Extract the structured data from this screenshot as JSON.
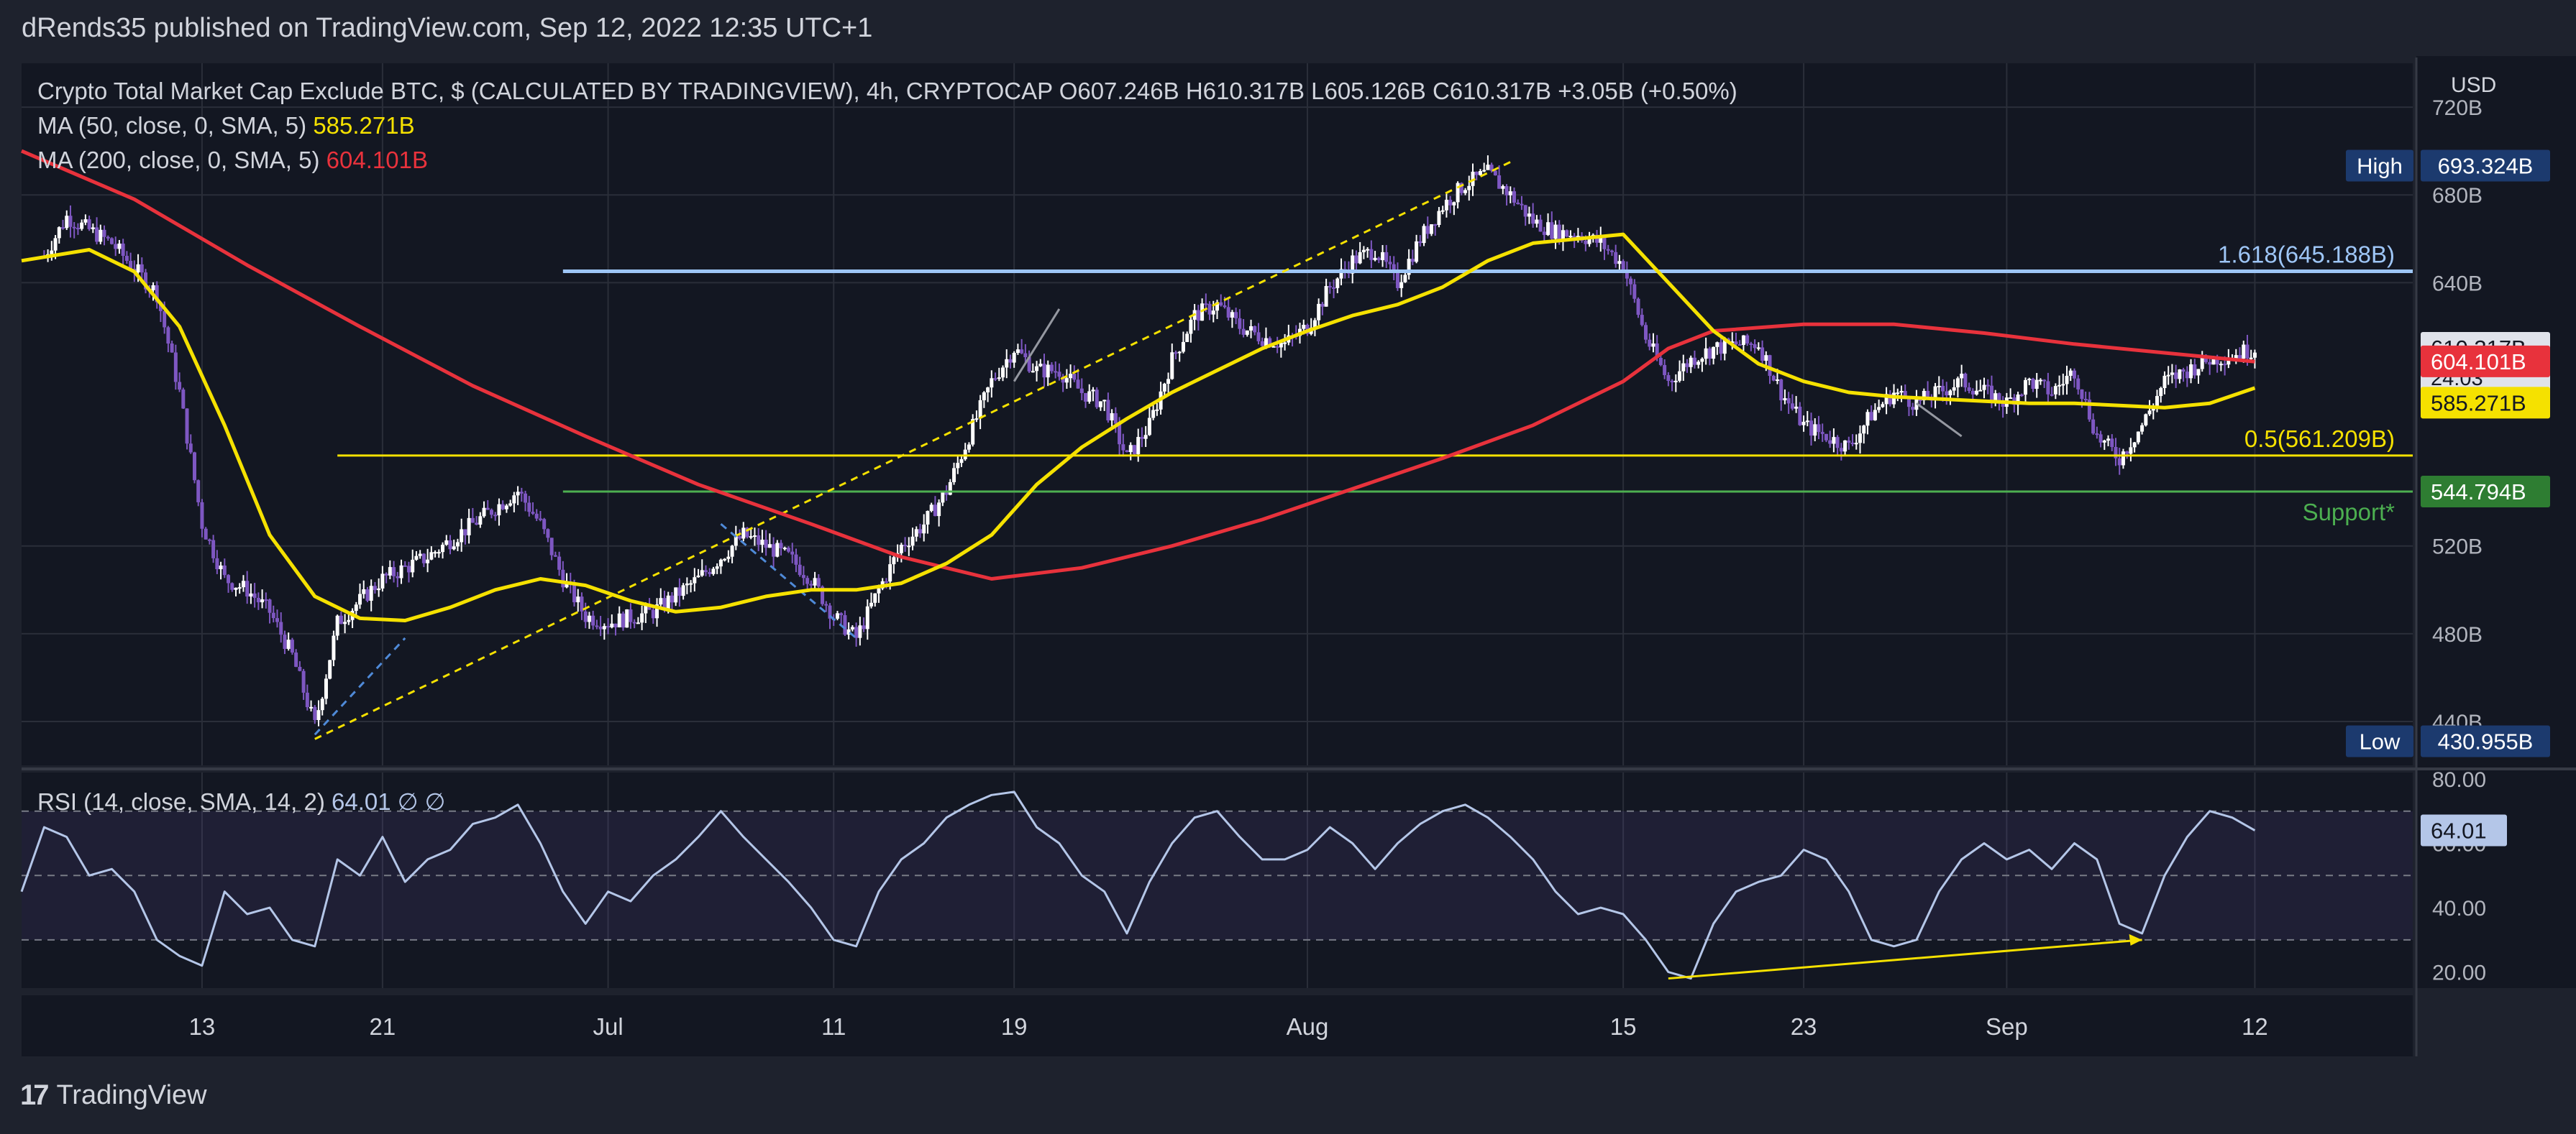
{
  "header": {
    "published": "dRends35 published on TradingView.com, Sep 12, 2022 12:35 UTC+1"
  },
  "footer": {
    "brand": "TradingView"
  },
  "colors": {
    "background": "#131722",
    "frame": "#1e222d",
    "grid": "#2a2e39",
    "text": "#d1d4dc",
    "ma50": "#f5e100",
    "ma200": "#e8323c",
    "fib": "#9ec6f7",
    "support": "#4caf50",
    "candle_up": "#ffffff",
    "candle_down": "#7e57c2",
    "rsi": "#b4c6e8"
  },
  "chart_data": [
    {
      "type": "candlestick",
      "title": "Crypto Total Market Cap Exclude BTC, $ (CALCULATED BY TRADINGVIEW), 4h, CRYPTOCAP",
      "ohlc_text": "O607.246B  H610.317B  L605.126B  C610.317B  +3.05B (+0.50%)",
      "currency": "USD",
      "ylim": [
        420,
        740
      ],
      "yticks": [
        {
          "value": 720,
          "label": "720B"
        },
        {
          "value": 680,
          "label": "680B"
        },
        {
          "value": 640,
          "label": "640B"
        },
        {
          "value": 520,
          "label": "520B"
        },
        {
          "value": 480,
          "label": "480B"
        },
        {
          "value": 440,
          "label": "440B"
        }
      ],
      "xticks": [
        {
          "day": 13,
          "label": "13"
        },
        {
          "day": 21,
          "label": "21"
        },
        {
          "day": 31,
          "label": "Jul"
        },
        {
          "day": 41,
          "label": "11"
        },
        {
          "day": 49,
          "label": "19"
        },
        {
          "day": 62,
          "label": "Aug"
        },
        {
          "day": 76,
          "label": "15"
        },
        {
          "day": 84,
          "label": "23"
        },
        {
          "day": 93,
          "label": "Sep"
        },
        {
          "day": 104,
          "label": "12"
        }
      ],
      "xlim": [
        5,
        111
      ],
      "price_path": [
        [
          6,
          652
        ],
        [
          7,
          670
        ],
        [
          9,
          658
        ],
        [
          11,
          635
        ],
        [
          12,
          590
        ],
        [
          13,
          530
        ],
        [
          14,
          505
        ],
        [
          15,
          500
        ],
        [
          16,
          490
        ],
        [
          17,
          470
        ],
        [
          18,
          438
        ],
        [
          19,
          485
        ],
        [
          21,
          505
        ],
        [
          23,
          515
        ],
        [
          25,
          530
        ],
        [
          27,
          545
        ],
        [
          28,
          530
        ],
        [
          29,
          505
        ],
        [
          30,
          488
        ],
        [
          31,
          485
        ],
        [
          33,
          490
        ],
        [
          35,
          505
        ],
        [
          37,
          525
        ],
        [
          39,
          515
        ],
        [
          40,
          505
        ],
        [
          41,
          488
        ],
        [
          42,
          478
        ],
        [
          43,
          500
        ],
        [
          44,
          520
        ],
        [
          45,
          530
        ],
        [
          46,
          545
        ],
        [
          47,
          570
        ],
        [
          48,
          595
        ],
        [
          49,
          610
        ],
        [
          50,
          600
        ],
        [
          51,
          600
        ],
        [
          52,
          590
        ],
        [
          53,
          585
        ],
        [
          54,
          560
        ],
        [
          55,
          575
        ],
        [
          56,
          605
        ],
        [
          57,
          625
        ],
        [
          58,
          630
        ],
        [
          59,
          620
        ],
        [
          60,
          615
        ],
        [
          61,
          612
        ],
        [
          62,
          620
        ],
        [
          63,
          638
        ],
        [
          64,
          650
        ],
        [
          65,
          655
        ],
        [
          66,
          640
        ],
        [
          67,
          660
        ],
        [
          68,
          675
        ],
        [
          69,
          685
        ],
        [
          70,
          690
        ],
        [
          71,
          680
        ],
        [
          72,
          668
        ],
        [
          73,
          663
        ],
        [
          74,
          662
        ],
        [
          75,
          658
        ],
        [
          76,
          648
        ],
        [
          77,
          615
        ],
        [
          78,
          595
        ],
        [
          79,
          605
        ],
        [
          80,
          610
        ],
        [
          81,
          612
        ],
        [
          82,
          612
        ],
        [
          83,
          590
        ],
        [
          84,
          575
        ],
        [
          85,
          570
        ],
        [
          86,
          565
        ],
        [
          87,
          580
        ],
        [
          88,
          590
        ],
        [
          89,
          585
        ],
        [
          90,
          590
        ],
        [
          91,
          595
        ],
        [
          92,
          590
        ],
        [
          93,
          585
        ],
        [
          94,
          595
        ],
        [
          95,
          590
        ],
        [
          96,
          600
        ],
        [
          97,
          570
        ],
        [
          98,
          560
        ],
        [
          99,
          575
        ],
        [
          100,
          595
        ],
        [
          101,
          600
        ],
        [
          102,
          605
        ],
        [
          103,
          607
        ],
        [
          104,
          610
        ]
      ],
      "ma50": {
        "label_prefix": "MA (50, close, 0, SMA, 5)",
        "value_label": "585.271B",
        "value": 585.271,
        "path": [
          [
            5,
            650
          ],
          [
            8,
            655
          ],
          [
            10,
            645
          ],
          [
            12,
            620
          ],
          [
            14,
            575
          ],
          [
            16,
            525
          ],
          [
            18,
            497
          ],
          [
            20,
            487
          ],
          [
            22,
            486
          ],
          [
            24,
            492
          ],
          [
            26,
            500
          ],
          [
            28,
            505
          ],
          [
            30,
            502
          ],
          [
            32,
            495
          ],
          [
            34,
            490
          ],
          [
            36,
            492
          ],
          [
            38,
            497
          ],
          [
            40,
            500
          ],
          [
            42,
            500
          ],
          [
            44,
            503
          ],
          [
            46,
            512
          ],
          [
            48,
            525
          ],
          [
            50,
            548
          ],
          [
            52,
            565
          ],
          [
            54,
            578
          ],
          [
            56,
            590
          ],
          [
            58,
            600
          ],
          [
            60,
            610
          ],
          [
            62,
            618
          ],
          [
            64,
            625
          ],
          [
            66,
            630
          ],
          [
            68,
            638
          ],
          [
            70,
            650
          ],
          [
            72,
            658
          ],
          [
            74,
            660
          ],
          [
            76,
            662
          ],
          [
            78,
            640
          ],
          [
            80,
            618
          ],
          [
            82,
            603
          ],
          [
            84,
            595
          ],
          [
            86,
            590
          ],
          [
            88,
            588
          ],
          [
            90,
            587
          ],
          [
            92,
            586
          ],
          [
            94,
            585
          ],
          [
            96,
            585
          ],
          [
            98,
            584
          ],
          [
            100,
            583
          ],
          [
            102,
            585
          ],
          [
            104,
            592
          ]
        ]
      },
      "ma200": {
        "label_prefix": "MA (200, close, 0, SMA, 5)",
        "value_label": "604.101B",
        "value": 604.101,
        "path": [
          [
            5,
            700
          ],
          [
            10,
            678
          ],
          [
            15,
            648
          ],
          [
            20,
            620
          ],
          [
            25,
            593
          ],
          [
            30,
            570
          ],
          [
            35,
            548
          ],
          [
            40,
            530
          ],
          [
            44,
            515
          ],
          [
            48,
            505
          ],
          [
            52,
            510
          ],
          [
            56,
            520
          ],
          [
            60,
            532
          ],
          [
            64,
            546
          ],
          [
            68,
            560
          ],
          [
            72,
            575
          ],
          [
            76,
            595
          ],
          [
            78,
            610
          ],
          [
            80,
            618
          ],
          [
            84,
            621
          ],
          [
            88,
            621
          ],
          [
            92,
            617
          ],
          [
            96,
            612
          ],
          [
            100,
            608
          ],
          [
            104,
            604
          ]
        ]
      },
      "levels": [
        {
          "name": "fib-1.618",
          "label": "1.618(645.188B)",
          "value": 645.188,
          "x_start": 29
        },
        {
          "name": "fib-0.5",
          "label": "0.5(561.209B)",
          "value": 561.209,
          "x_start": 19
        },
        {
          "name": "support",
          "label": "Support*",
          "value": 544.794,
          "x_start": 29
        }
      ],
      "price_badges": [
        {
          "name": "last-price",
          "value": 610.317,
          "label": "610.317B",
          "sublabel": "24:03",
          "fg": "#131722",
          "bg": "#e0e3eb"
        },
        {
          "name": "ma200-value",
          "value": 604.101,
          "label": "604.101B",
          "fg": "#ffffff",
          "bg": "#e8323c"
        },
        {
          "name": "ma50-value",
          "value": 585.271,
          "label": "585.271B",
          "fg": "#131722",
          "bg": "#f5e100"
        },
        {
          "name": "support-value",
          "value": 544.794,
          "label": "544.794B",
          "fg": "#ffffff",
          "bg": "#2e7d32"
        }
      ],
      "high": {
        "label": "High",
        "value_label": "693.324B",
        "value": 693.324
      },
      "low": {
        "label": "Low",
        "value_label": "430.955B",
        "value": 430.955
      },
      "annotations": [
        {
          "type": "dashed-channel",
          "color": "#f5e100",
          "from": [
            18,
            432
          ],
          "to": [
            71,
            695
          ]
        },
        {
          "type": "dashed-line",
          "color": "#4f8ad8",
          "from": [
            18,
            434
          ],
          "to": [
            22,
            478
          ]
        },
        {
          "type": "dashed-line",
          "color": "#4f8ad8",
          "from": [
            36,
            530
          ],
          "to": [
            42,
            478
          ]
        },
        {
          "type": "line",
          "color": "#9598a1",
          "from": [
            49,
            595
          ],
          "to": [
            51,
            628
          ]
        },
        {
          "type": "line",
          "color": "#9598a1",
          "from": [
            89,
            585
          ],
          "to": [
            91,
            570
          ]
        }
      ]
    },
    {
      "type": "line",
      "title": "RSI (14, close, SMA, 14, 2)",
      "value_label": "64.01",
      "extra": "∅  ∅",
      "ylim": [
        15,
        82
      ],
      "yticks": [
        {
          "value": 80,
          "label": "80.00"
        },
        {
          "value": 60,
          "label": "60.00"
        },
        {
          "value": 40,
          "label": "40.00"
        },
        {
          "value": 20,
          "label": "20.00"
        }
      ],
      "bands": [
        70,
        30
      ],
      "mid": 50,
      "badge": {
        "value": 64.01,
        "label": "64.01"
      },
      "path": [
        [
          5,
          45
        ],
        [
          6,
          65
        ],
        [
          7,
          62
        ],
        [
          8,
          50
        ],
        [
          9,
          52
        ],
        [
          10,
          45
        ],
        [
          11,
          30
        ],
        [
          12,
          25
        ],
        [
          13,
          22
        ],
        [
          14,
          45
        ],
        [
          15,
          38
        ],
        [
          16,
          40
        ],
        [
          17,
          30
        ],
        [
          18,
          28
        ],
        [
          19,
          55
        ],
        [
          20,
          50
        ],
        [
          21,
          62
        ],
        [
          22,
          48
        ],
        [
          23,
          55
        ],
        [
          24,
          58
        ],
        [
          25,
          66
        ],
        [
          26,
          68
        ],
        [
          27,
          72
        ],
        [
          28,
          60
        ],
        [
          29,
          45
        ],
        [
          30,
          35
        ],
        [
          31,
          45
        ],
        [
          32,
          42
        ],
        [
          33,
          50
        ],
        [
          34,
          55
        ],
        [
          35,
          62
        ],
        [
          36,
          70
        ],
        [
          37,
          62
        ],
        [
          38,
          55
        ],
        [
          39,
          48
        ],
        [
          40,
          40
        ],
        [
          41,
          30
        ],
        [
          42,
          28
        ],
        [
          43,
          45
        ],
        [
          44,
          55
        ],
        [
          45,
          60
        ],
        [
          46,
          68
        ],
        [
          47,
          72
        ],
        [
          48,
          75
        ],
        [
          49,
          76
        ],
        [
          50,
          65
        ],
        [
          51,
          60
        ],
        [
          52,
          50
        ],
        [
          53,
          45
        ],
        [
          54,
          32
        ],
        [
          55,
          48
        ],
        [
          56,
          60
        ],
        [
          57,
          68
        ],
        [
          58,
          70
        ],
        [
          59,
          62
        ],
        [
          60,
          55
        ],
        [
          61,
          55
        ],
        [
          62,
          58
        ],
        [
          63,
          65
        ],
        [
          64,
          60
        ],
        [
          65,
          52
        ],
        [
          66,
          60
        ],
        [
          67,
          66
        ],
        [
          68,
          70
        ],
        [
          69,
          72
        ],
        [
          70,
          68
        ],
        [
          71,
          62
        ],
        [
          72,
          55
        ],
        [
          73,
          45
        ],
        [
          74,
          38
        ],
        [
          75,
          40
        ],
        [
          76,
          38
        ],
        [
          77,
          30
        ],
        [
          78,
          20
        ],
        [
          79,
          18
        ],
        [
          80,
          35
        ],
        [
          81,
          45
        ],
        [
          82,
          48
        ],
        [
          83,
          50
        ],
        [
          84,
          58
        ],
        [
          85,
          55
        ],
        [
          86,
          45
        ],
        [
          87,
          30
        ],
        [
          88,
          28
        ],
        [
          89,
          30
        ],
        [
          90,
          45
        ],
        [
          91,
          55
        ],
        [
          92,
          60
        ],
        [
          93,
          55
        ],
        [
          94,
          58
        ],
        [
          95,
          52
        ],
        [
          96,
          60
        ],
        [
          97,
          55
        ],
        [
          98,
          35
        ],
        [
          99,
          32
        ],
        [
          100,
          50
        ],
        [
          101,
          62
        ],
        [
          102,
          70
        ],
        [
          103,
          68
        ],
        [
          104,
          64
        ]
      ],
      "divergence": {
        "color": "#f5e100",
        "from": [
          78,
          18
        ],
        "to": [
          99,
          30
        ]
      }
    }
  ]
}
